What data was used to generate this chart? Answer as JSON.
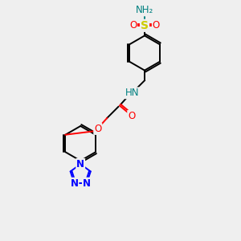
{
  "background_color": "#efefef",
  "atom_colors": {
    "N": "#008080",
    "O": "#ff0000",
    "S": "#cccc00",
    "N_triazole": "#0000ff",
    "C": "#000000"
  },
  "bond_lw": 1.4,
  "font_size_atom": 8.5
}
